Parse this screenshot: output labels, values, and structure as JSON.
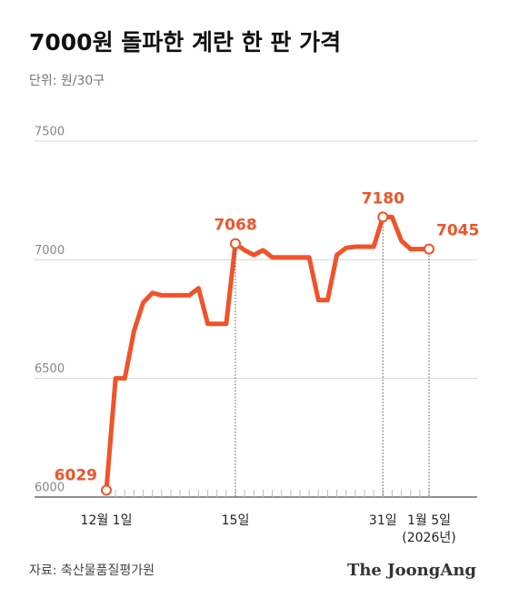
{
  "chart_data": {
    "type": "line",
    "title": "7000원 돌파한 계란 한 판 가격",
    "subtitle": "단위: 원/30구",
    "categories": [
      "12월 1일",
      null,
      null,
      null,
      null,
      null,
      null,
      null,
      null,
      null,
      null,
      null,
      null,
      null,
      "15일",
      null,
      null,
      null,
      null,
      null,
      null,
      null,
      null,
      null,
      null,
      null,
      null,
      null,
      null,
      null,
      "31일",
      null,
      null,
      null,
      null,
      "1월 5일"
    ],
    "x_annotation": "(2026년)",
    "values": [
      6029,
      6500,
      6500,
      6700,
      6820,
      6860,
      6850,
      6850,
      6850,
      6850,
      6880,
      6730,
      6730,
      6730,
      7068,
      7040,
      7020,
      7040,
      7010,
      7010,
      7010,
      7010,
      7010,
      6830,
      6830,
      7020,
      7050,
      7055,
      7055,
      7055,
      7180,
      7180,
      7080,
      7045,
      7045,
      7045
    ],
    "labeled_indices": [
      0,
      14,
      30,
      35
    ],
    "color": "#f0532a",
    "ylim": [
      6000,
      7500
    ],
    "yticks": [
      6000,
      6500,
      7000,
      7500
    ],
    "grid": true,
    "source": "자료: 축산물품질평가원",
    "brand": "The JoongAng"
  }
}
